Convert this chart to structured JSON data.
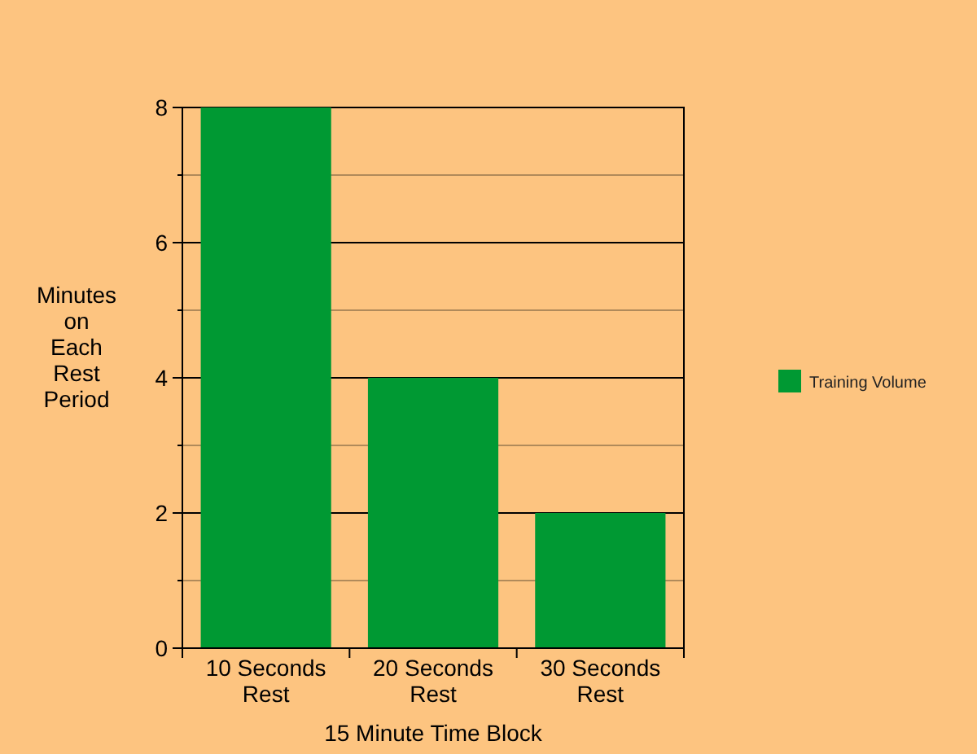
{
  "chart_data": {
    "type": "bar",
    "xlabel": "15 Minute Time Block",
    "ylabel": "Minutes on Each Rest Period",
    "categories": [
      "10 Seconds Rest",
      "20 Seconds Rest",
      "30 Seconds Rest"
    ],
    "series": [
      {
        "name": "Training Volume",
        "color": "#009933",
        "values": [
          8,
          4,
          2
        ]
      }
    ],
    "ylim": [
      0,
      8
    ],
    "yticks": [
      0,
      {
        "value": 1,
        "label": null
      },
      2,
      {
        "value": 3,
        "label": null
      },
      4,
      {
        "value": 5,
        "label": null
      },
      6,
      {
        "value": 7,
        "label": null
      },
      8
    ],
    "grid": "y",
    "legend": "right"
  }
}
